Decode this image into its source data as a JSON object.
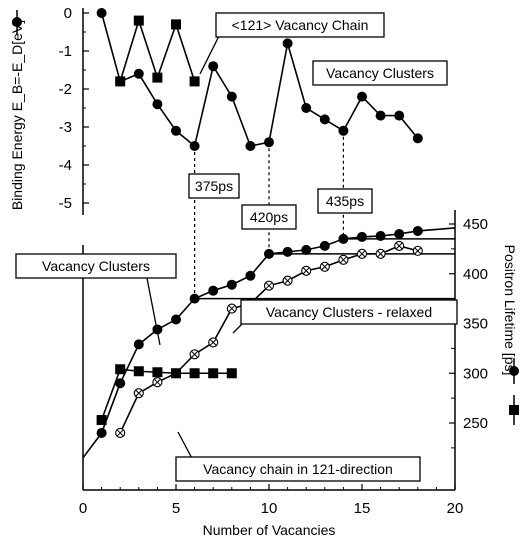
{
  "chart_data": [
    {
      "type": "line",
      "panel": "top",
      "ylabel": "Binding Energy E_B=-E_D[eV]",
      "ylim": [
        -5.5,
        0
      ],
      "yticks": [
        "0",
        "-1",
        "-2",
        "-3",
        "-4",
        "-5"
      ],
      "x": [
        1,
        2,
        3,
        4,
        5,
        6,
        7,
        8,
        9,
        10,
        11,
        12,
        13,
        14,
        15,
        16,
        17,
        18
      ],
      "series": [
        {
          "name": "Vacancy Clusters",
          "marker": "circle",
          "x": [
            1,
            2,
            3,
            4,
            5,
            6,
            7,
            8,
            9,
            10,
            11,
            12,
            13,
            14,
            15,
            16,
            17,
            18
          ],
          "values": [
            0,
            -1.8,
            -1.6,
            -2.4,
            -3.1,
            -3.5,
            -1.4,
            -2.2,
            -3.5,
            -3.4,
            -0.8,
            -2.5,
            -2.8,
            -3.1,
            -2.2,
            -2.7,
            -2.7,
            -3.3
          ]
        },
        {
          "name": "<121> Vacancy Chain",
          "marker": "square",
          "x": [
            2,
            3,
            4,
            5,
            6
          ],
          "values": [
            -1.8,
            -0.2,
            -1.7,
            -0.3,
            -1.8
          ]
        }
      ]
    },
    {
      "type": "line",
      "panel": "bottom",
      "xlabel": "Number of Vacancies",
      "ylabel": "Positron Lifetime [ps]",
      "xlim": [
        0,
        20
      ],
      "xticks": [
        "0",
        "5",
        "10",
        "15",
        "20"
      ],
      "ylim": [
        230,
        455
      ],
      "yticks": [
        "250",
        "300",
        "350",
        "400",
        "450"
      ],
      "series": [
        {
          "name": "Vacancy Clusters",
          "marker": "circle",
          "x": [
            0,
            1,
            2,
            3,
            4,
            5,
            6,
            7,
            8,
            9,
            10,
            11,
            12,
            13,
            14,
            15,
            16,
            17,
            18,
            20
          ],
          "values": [
            215,
            240,
            290,
            329,
            344,
            354,
            375,
            383,
            389,
            398,
            420,
            422,
            424,
            428,
            435,
            437,
            438,
            440,
            443,
            446
          ]
        },
        {
          "name": "Vacancy Clusters - relaxed",
          "marker": "circle-cross",
          "x": [
            2,
            3,
            4,
            5,
            6,
            7,
            8,
            9,
            10,
            11,
            12,
            13,
            14,
            15,
            16,
            17,
            18
          ],
          "values": [
            240,
            280,
            291,
            300,
            319,
            331,
            365,
            370,
            388,
            393,
            403,
            407,
            414,
            420,
            420,
            428,
            423
          ]
        },
        {
          "name": "Vacancy chain in 121-direction",
          "marker": "square",
          "x": [
            1,
            2,
            3,
            4,
            5,
            6,
            7,
            8
          ],
          "values": [
            253,
            304,
            302,
            301,
            300,
            300,
            300,
            300
          ]
        }
      ],
      "reference_lines": [
        375,
        420,
        435
      ]
    }
  ],
  "annotations": {
    "vacancy_chain_121": "<121> Vacancy Chain",
    "vacancy_clusters_top": "Vacancy Clusters",
    "lifetime_375": "375ps",
    "lifetime_420": "420ps",
    "lifetime_435": "435ps",
    "vacancy_clusters_bottom": "Vacancy Clusters",
    "vacancy_clusters_relaxed": "Vacancy Clusters - relaxed",
    "vacancy_chain_121_direction": "Vacancy chain in 121-direction"
  },
  "axis_titles": {
    "left": "Binding Energy E_B=-E_D[eV]",
    "right": "Positron Lifetime [ps]",
    "bottom": "Number of Vacancies"
  }
}
